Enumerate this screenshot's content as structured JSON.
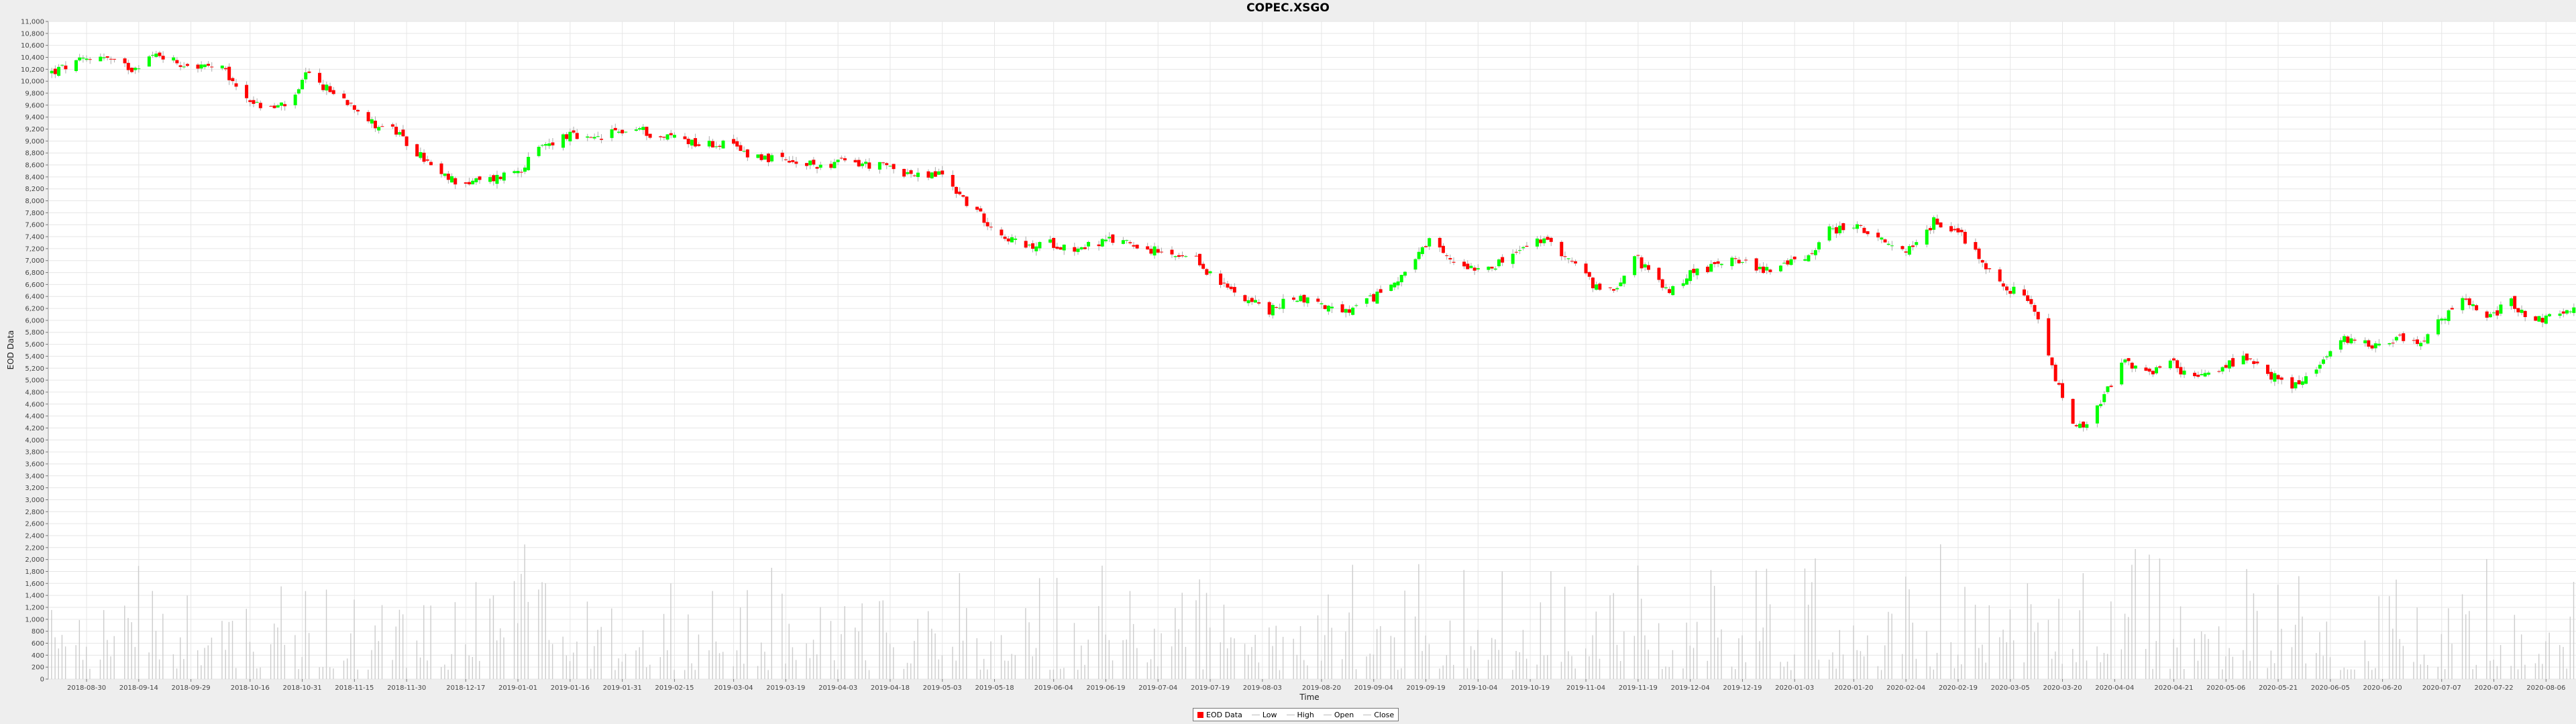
{
  "chart_data": {
    "type": "candlestick",
    "title": "COPEC.XSGO",
    "xlabel": "Time",
    "ylabel": "EOD Data",
    "ylim": [
      0,
      11000
    ],
    "y_ticks": [
      0,
      200,
      400,
      600,
      800,
      1000,
      1200,
      1400,
      1600,
      1800,
      2000,
      2200,
      2400,
      2600,
      2800,
      3000,
      3200,
      3400,
      3600,
      3800,
      4000,
      4200,
      4400,
      4600,
      4800,
      5000,
      5200,
      5400,
      5600,
      5800,
      6000,
      6200,
      6400,
      6600,
      6800,
      7000,
      7200,
      7400,
      7600,
      7800,
      8000,
      8200,
      8400,
      8600,
      8800,
      9000,
      9200,
      9400,
      9600,
      9800,
      10000,
      10200,
      10400,
      10600,
      10800,
      11000
    ],
    "y_tick_labels": [
      "0",
      "200",
      "400",
      "600",
      "800",
      "1,000",
      "1,200",
      "1,400",
      "1,600",
      "1,800",
      "2,000",
      "2,200",
      "2,400",
      "2,600",
      "2,800",
      "3,000",
      "3,200",
      "3,400",
      "3,600",
      "3,800",
      "4,000",
      "4,200",
      "4,400",
      "4,600",
      "4,800",
      "5,000",
      "5,200",
      "5,400",
      "5,600",
      "5,800",
      "6,000",
      "6,200",
      "6,400",
      "6,600",
      "6,800",
      "7,000",
      "7,200",
      "7,400",
      "7,600",
      "7,800",
      "8,000",
      "8,200",
      "8,400",
      "8,600",
      "8,800",
      "9,000",
      "9,200",
      "9,400",
      "9,600",
      "9,800",
      "10,000",
      "10,200",
      "10,400",
      "10,600",
      "10,800",
      "11,000"
    ],
    "x_ticks": [
      "2018-08-30",
      "2018-09-14",
      "2018-09-29",
      "2018-10-16",
      "2018-10-31",
      "2018-11-15",
      "2018-11-30",
      "2018-12-17",
      "2019-01-01",
      "2019-01-16",
      "2019-01-31",
      "2019-02-15",
      "2019-03-04",
      "2019-03-19",
      "2019-04-03",
      "2019-04-18",
      "2019-05-03",
      "2019-05-18",
      "2019-06-04",
      "2019-06-19",
      "2019-07-04",
      "2019-07-19",
      "2019-08-03",
      "2019-08-20",
      "2019-09-04",
      "2019-09-19",
      "2019-10-04",
      "2019-10-19",
      "2019-11-04",
      "2019-11-19",
      "2019-12-04",
      "2019-12-19",
      "2020-01-03",
      "2020-01-20",
      "2020-02-04",
      "2020-02-19",
      "2020-03-05",
      "2020-03-20",
      "2020-04-04",
      "2020-04-21",
      "2020-05-06",
      "2020-05-21",
      "2020-06-05",
      "2020-06-20",
      "2020-07-07",
      "2020-07-22",
      "2020-08-06"
    ],
    "x_range": [
      "2018-08-19",
      "2020-08-15"
    ],
    "legend": [
      "EOD Data",
      "Low",
      "High",
      "Open",
      "Close"
    ],
    "legend_position": "bottom",
    "colors": {
      "up": "#00ff00",
      "down": "#ff0000",
      "wick": "#aaaaaa",
      "volume": "#cccccc",
      "grid": "#e6e6e6",
      "plot_bg": "#ffffff"
    },
    "grid": true,
    "close_path": [
      [
        "2018-08-20",
        10150
      ],
      [
        "2018-08-27",
        10300
      ],
      [
        "2018-09-03",
        10450
      ],
      [
        "2018-09-07",
        10300
      ],
      [
        "2018-09-12",
        10220
      ],
      [
        "2018-09-17",
        10400
      ],
      [
        "2018-09-20",
        10450
      ],
      [
        "2018-09-26",
        10300
      ],
      [
        "2018-10-01",
        10250
      ],
      [
        "2018-10-08",
        10200
      ],
      [
        "2018-10-12",
        9900
      ],
      [
        "2018-10-18",
        9600
      ],
      [
        "2018-10-23",
        9550
      ],
      [
        "2018-10-29",
        9700
      ],
      [
        "2018-11-01",
        10100
      ],
      [
        "2018-11-05",
        9950
      ],
      [
        "2018-11-09",
        9800
      ],
      [
        "2018-11-15",
        9600
      ],
      [
        "2018-11-20",
        9300
      ],
      [
        "2018-11-26",
        9200
      ],
      [
        "2018-11-30",
        8950
      ],
      [
        "2018-12-05",
        8700
      ],
      [
        "2018-12-10",
        8400
      ],
      [
        "2018-12-17",
        8300
      ],
      [
        "2018-12-24",
        8350
      ],
      [
        "2019-01-02",
        8550
      ],
      [
        "2019-01-08",
        8900
      ],
      [
        "2019-01-15",
        9100
      ],
      [
        "2019-01-22",
        9000
      ],
      [
        "2019-01-29",
        9150
      ],
      [
        "2019-02-05",
        9200
      ],
      [
        "2019-02-11",
        9050
      ],
      [
        "2019-02-15",
        9100
      ],
      [
        "2019-02-22",
        8950
      ],
      [
        "2019-03-01",
        8950
      ],
      [
        "2019-03-08",
        8800
      ],
      [
        "2019-03-15",
        8700
      ],
      [
        "2019-03-22",
        8600
      ],
      [
        "2019-03-29",
        8600
      ],
      [
        "2019-04-05",
        8650
      ],
      [
        "2019-04-12",
        8600
      ],
      [
        "2019-04-19",
        8550
      ],
      [
        "2019-04-26",
        8400
      ],
      [
        "2019-05-03",
        8450
      ],
      [
        "2019-05-08",
        8100
      ],
      [
        "2019-05-13",
        7800
      ],
      [
        "2019-05-20",
        7450
      ],
      [
        "2019-05-27",
        7200
      ],
      [
        "2019-06-03",
        7300
      ],
      [
        "2019-06-10",
        7200
      ],
      [
        "2019-06-17",
        7300
      ],
      [
        "2019-06-24",
        7350
      ],
      [
        "2019-07-01",
        7200
      ],
      [
        "2019-07-08",
        7050
      ],
      [
        "2019-07-15",
        7000
      ],
      [
        "2019-07-22",
        6600
      ],
      [
        "2019-07-29",
        6400
      ],
      [
        "2019-08-05",
        6150
      ],
      [
        "2019-08-12",
        6400
      ],
      [
        "2019-08-19",
        6300
      ],
      [
        "2019-08-26",
        6100
      ],
      [
        "2019-09-02",
        6300
      ],
      [
        "2019-09-09",
        6600
      ],
      [
        "2019-09-16",
        7000
      ],
      [
        "2019-09-20",
        7300
      ],
      [
        "2019-09-26",
        7000
      ],
      [
        "2019-10-03",
        6900
      ],
      [
        "2019-10-10",
        6950
      ],
      [
        "2019-10-17",
        7200
      ],
      [
        "2019-10-22",
        7350
      ],
      [
        "2019-10-28",
        7150
      ],
      [
        "2019-11-04",
        6750
      ],
      [
        "2019-11-08",
        6450
      ],
      [
        "2019-11-13",
        6600
      ],
      [
        "2019-11-18",
        7100
      ],
      [
        "2019-11-22",
        6800
      ],
      [
        "2019-11-28",
        6450
      ],
      [
        "2019-12-04",
        6800
      ],
      [
        "2019-12-11",
        6900
      ],
      [
        "2019-12-16",
        7100
      ],
      [
        "2019-12-23",
        6850
      ],
      [
        "2019-12-30",
        6900
      ],
      [
        "2020-01-06",
        7050
      ],
      [
        "2020-01-13",
        7500
      ],
      [
        "2020-01-20",
        7600
      ],
      [
        "2020-01-24",
        7450
      ],
      [
        "2020-01-31",
        7200
      ],
      [
        "2020-02-06",
        7200
      ],
      [
        "2020-02-12",
        7650
      ],
      [
        "2020-02-18",
        7550
      ],
      [
        "2020-02-24",
        7150
      ],
      [
        "2020-03-02",
        6600
      ],
      [
        "2020-03-09",
        6400
      ],
      [
        "2020-03-13",
        6000
      ],
      [
        "2020-03-18",
        5000
      ],
      [
        "2020-03-23",
        4300
      ],
      [
        "2020-03-26",
        4150
      ],
      [
        "2020-03-31",
        4600
      ],
      [
        "2020-04-06",
        5300
      ],
      [
        "2020-04-13",
        5100
      ],
      [
        "2020-04-20",
        5300
      ],
      [
        "2020-04-27",
        5000
      ],
      [
        "2020-05-04",
        5200
      ],
      [
        "2020-05-11",
        5350
      ],
      [
        "2020-05-18",
        5100
      ],
      [
        "2020-05-25",
        4900
      ],
      [
        "2020-06-01",
        5150
      ],
      [
        "2020-06-05",
        5500
      ],
      [
        "2020-06-10",
        5700
      ],
      [
        "2020-06-17",
        5600
      ],
      [
        "2020-06-24",
        5700
      ],
      [
        "2020-07-01",
        5650
      ],
      [
        "2020-07-07",
        6000
      ],
      [
        "2020-07-13",
        6350
      ],
      [
        "2020-07-20",
        6050
      ],
      [
        "2020-07-27",
        6300
      ],
      [
        "2020-08-03",
        6000
      ],
      [
        "2020-08-10",
        6100
      ],
      [
        "2020-08-14",
        6150
      ]
    ]
  }
}
